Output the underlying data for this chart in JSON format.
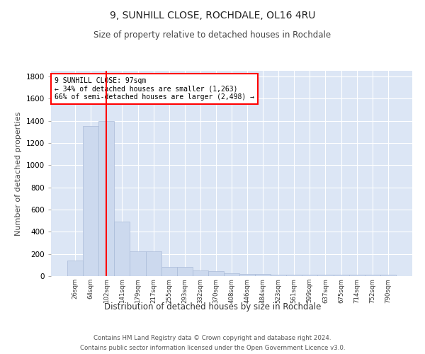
{
  "title1": "9, SUNHILL CLOSE, ROCHDALE, OL16 4RU",
  "title2": "Size of property relative to detached houses in Rochdale",
  "xlabel": "Distribution of detached houses by size in Rochdale",
  "ylabel": "Number of detached properties",
  "bar_labels": [
    "26sqm",
    "64sqm",
    "102sqm",
    "141sqm",
    "179sqm",
    "217sqm",
    "255sqm",
    "293sqm",
    "332sqm",
    "370sqm",
    "408sqm",
    "446sqm",
    "484sqm",
    "523sqm",
    "561sqm",
    "599sqm",
    "637sqm",
    "675sqm",
    "714sqm",
    "752sqm",
    "790sqm"
  ],
  "bar_values": [
    140,
    1350,
    1400,
    490,
    225,
    225,
    85,
    85,
    50,
    45,
    25,
    20,
    20,
    15,
    15,
    10,
    10,
    10,
    10,
    10,
    10
  ],
  "bar_color": "#ccd9ee",
  "bar_edge_color": "#aabbd8",
  "vline_x": 2.0,
  "vline_color": "red",
  "annotation_text": "9 SUNHILL CLOSE: 97sqm\n← 34% of detached houses are smaller (1,263)\n66% of semi-detached houses are larger (2,498) →",
  "annotation_box_color": "white",
  "annotation_box_edge": "red",
  "ylim": [
    0,
    1850
  ],
  "yticks": [
    0,
    200,
    400,
    600,
    800,
    1000,
    1200,
    1400,
    1600,
    1800
  ],
  "bg_color": "#dce6f5",
  "footer1": "Contains HM Land Registry data © Crown copyright and database right 2024.",
  "footer2": "Contains public sector information licensed under the Open Government Licence v3.0."
}
